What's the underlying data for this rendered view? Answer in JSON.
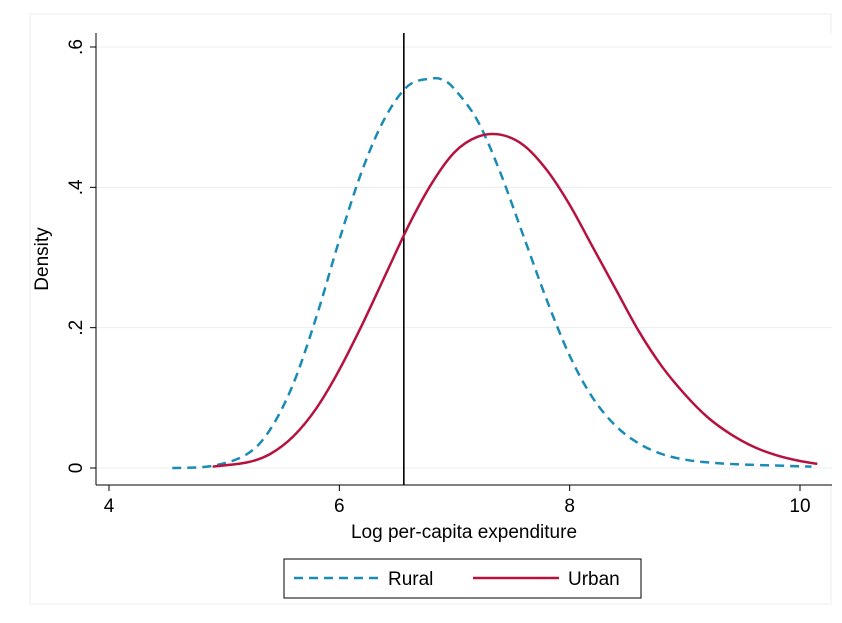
{
  "chart_data": {
    "type": "line",
    "xlabel": "Log per-capita expenditure",
    "ylabel": "Density",
    "xlim": [
      4,
      10.15
    ],
    "ylim": [
      0,
      0.6
    ],
    "xticks": [
      4,
      6,
      8,
      10
    ],
    "xtick_labels": [
      "4",
      "6",
      "8",
      "10"
    ],
    "yticks": [
      0,
      0.2,
      0.4,
      0.6
    ],
    "ytick_labels": [
      "0",
      ".2",
      ".4",
      ".6"
    ],
    "grid": "horizontal",
    "legend_position": "bottom",
    "reference_line_x": 6.56,
    "series": [
      {
        "name": "Rural",
        "color": "#1a8bb5",
        "style": "dashed",
        "x": [
          4.55,
          4.9,
          5.2,
          5.4,
          5.6,
          5.8,
          6.0,
          6.2,
          6.4,
          6.6,
          6.8,
          6.9,
          7.0,
          7.2,
          7.4,
          7.6,
          7.8,
          8.0,
          8.2,
          8.4,
          8.6,
          8.8,
          9.0,
          9.2,
          9.5,
          10.1
        ],
        "values": [
          0.0,
          0.003,
          0.02,
          0.055,
          0.12,
          0.215,
          0.325,
          0.425,
          0.5,
          0.545,
          0.555,
          0.553,
          0.54,
          0.495,
          0.42,
          0.33,
          0.24,
          0.16,
          0.1,
          0.06,
          0.035,
          0.02,
          0.012,
          0.008,
          0.005,
          0.002
        ]
      },
      {
        "name": "Urban",
        "color": "#b5123f",
        "style": "solid",
        "x": [
          4.9,
          5.2,
          5.4,
          5.6,
          5.8,
          6.0,
          6.2,
          6.4,
          6.6,
          6.8,
          7.0,
          7.2,
          7.4,
          7.6,
          7.8,
          8.0,
          8.2,
          8.4,
          8.6,
          8.8,
          9.0,
          9.2,
          9.4,
          9.6,
          9.8,
          10.0,
          10.15
        ],
        "values": [
          0.002,
          0.008,
          0.02,
          0.045,
          0.085,
          0.14,
          0.205,
          0.275,
          0.345,
          0.405,
          0.45,
          0.472,
          0.475,
          0.46,
          0.425,
          0.375,
          0.315,
          0.255,
          0.195,
          0.145,
          0.105,
          0.072,
          0.048,
          0.03,
          0.018,
          0.01,
          0.006
        ]
      }
    ]
  }
}
